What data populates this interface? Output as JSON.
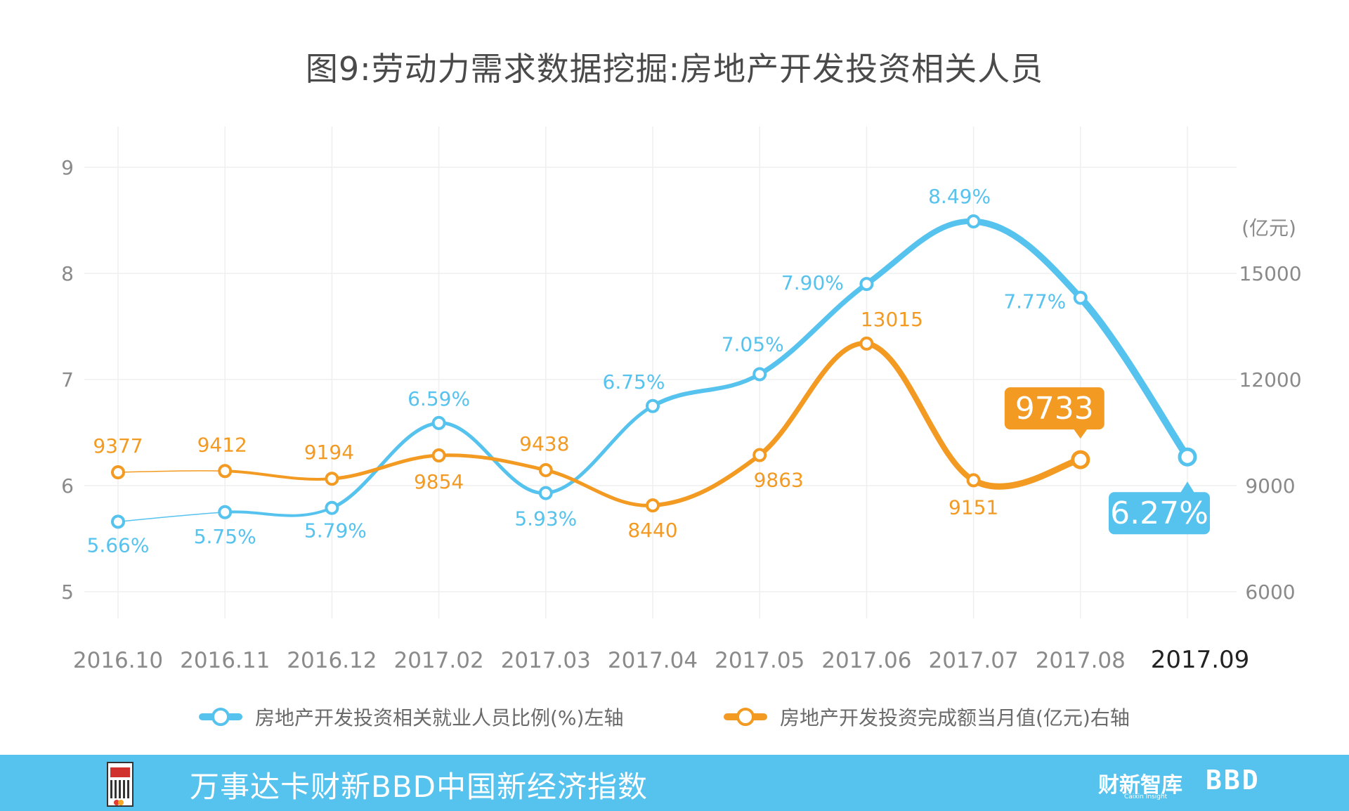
{
  "title": "图9:劳动力需求数据挖掘:房地产开发投资相关人员",
  "chart_data": {
    "type": "line",
    "categories": [
      "2016.10",
      "2016.11",
      "2016.12",
      "2017.02",
      "2017.03",
      "2017.04",
      "2017.05",
      "2017.06",
      "2017.07",
      "2017.08",
      "2017.09"
    ],
    "left_axis": {
      "ticks": [
        5,
        6,
        7,
        8,
        9
      ],
      "ylim": [
        5,
        9
      ]
    },
    "right_axis": {
      "unit": "(亿元)",
      "ticks": [
        6000,
        9000,
        12000,
        15000
      ],
      "ylim": [
        6000,
        18000
      ]
    },
    "series": [
      {
        "name": "房地产开发投资相关就业人员比例(%)左轴",
        "axis": "left",
        "color": "#56c2ee",
        "values": [
          5.66,
          5.75,
          5.79,
          6.59,
          5.93,
          6.75,
          7.05,
          7.9,
          8.49,
          7.77,
          6.27
        ],
        "labels": [
          "5.66%",
          "5.75%",
          "5.79%",
          "6.59%",
          "5.93%",
          "6.75%",
          "7.05%",
          "7.90%",
          "8.49%",
          "7.77%",
          "6.27%"
        ]
      },
      {
        "name": "房地产开发投资完成额当月值(亿元)右轴",
        "axis": "right",
        "color": "#f39a22",
        "values": [
          9377,
          9412,
          9194,
          9854,
          9438,
          8440,
          9863,
          13015,
          9151,
          9733,
          null
        ],
        "labels": [
          "9377",
          "9412",
          "9194",
          "9854",
          "9438",
          "8440",
          "9863",
          "13015",
          "9151",
          "9733",
          ""
        ]
      }
    ],
    "callouts": {
      "blue": "6.27%",
      "orange": "9733"
    },
    "grid": true,
    "legend_position": "bottom"
  },
  "legend": {
    "blue": "房地产开发投资相关就业人员比例(%)左轴",
    "orange": "房地产开发投资完成额当月值(亿元)右轴"
  },
  "footer": {
    "title": "万事达卡财新BBD中国新经济指数",
    "brand1": "财新智库",
    "brand1_sub": "Caixin Insight",
    "brand2": "BBD"
  }
}
